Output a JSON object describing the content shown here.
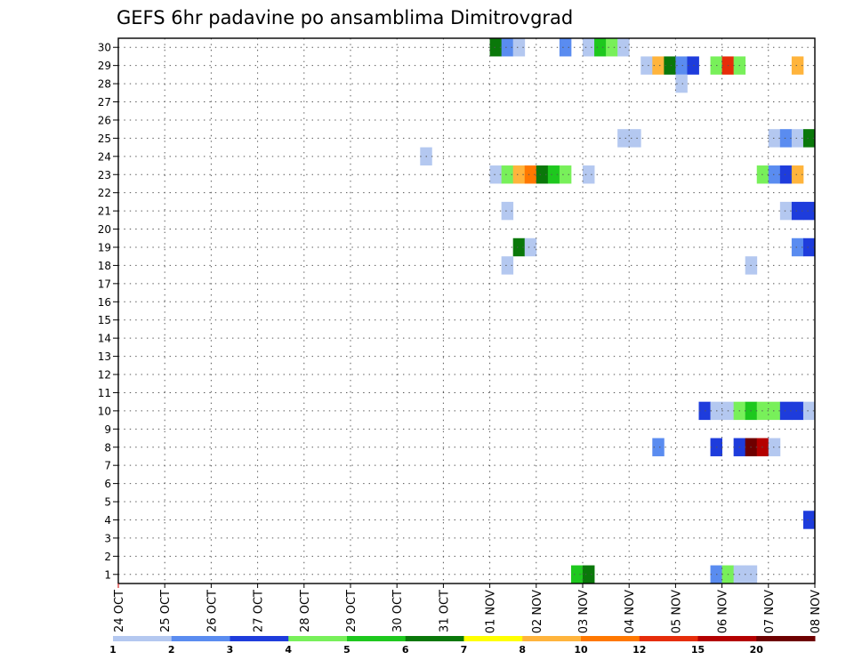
{
  "chart_data": {
    "type": "heatmap",
    "title": "GEFS 6hr padavine po ansamblima Dimitrovgrad",
    "x_ticks": [
      "24 OCT",
      "25 OCT",
      "26 OCT",
      "27 OCT",
      "28 OCT",
      "29 OCT",
      "30 OCT",
      "31 OCT",
      "01 NOV",
      "02 NOV",
      "03 NOV",
      "04 NOV",
      "05 NOV",
      "06 NOV",
      "07 NOV",
      "08 NOV"
    ],
    "x_range_days": [
      0,
      15
    ],
    "x_step_hours": 6,
    "y_ticks": [
      1,
      2,
      3,
      4,
      5,
      6,
      7,
      8,
      9,
      10,
      11,
      12,
      13,
      14,
      15,
      16,
      17,
      18,
      19,
      20,
      21,
      22,
      23,
      24,
      25,
      26,
      27,
      28,
      29,
      30
    ],
    "y_range": [
      0.5,
      30.5
    ],
    "grid": true,
    "colorbar": {
      "levels": [
        "1",
        "2",
        "3",
        "4",
        "5",
        "6",
        "7",
        "8",
        "10",
        "12",
        "15",
        "20"
      ],
      "colors": [
        "#b4c8f0",
        "#5a8cf0",
        "#1e3cdc",
        "#78f05a",
        "#1ec81e",
        "#0a780a",
        "#ffff00",
        "#ffb43c",
        "#ff7800",
        "#e62d0a",
        "#b40000",
        "#6e0000"
      ]
    },
    "cells": [
      {
        "member": 30,
        "t": 8.0,
        "c": 5
      },
      {
        "member": 30,
        "t": 8.25,
        "c": 1
      },
      {
        "member": 30,
        "t": 8.5,
        "c": 0
      },
      {
        "member": 30,
        "t": 9.5,
        "c": 1
      },
      {
        "member": 30,
        "t": 10.0,
        "c": 0
      },
      {
        "member": 30,
        "t": 10.25,
        "c": 4
      },
      {
        "member": 30,
        "t": 10.5,
        "c": 3
      },
      {
        "member": 30,
        "t": 10.75,
        "c": 0
      },
      {
        "member": 29,
        "t": 11.25,
        "c": 0
      },
      {
        "member": 29,
        "t": 11.5,
        "c": 7
      },
      {
        "member": 29,
        "t": 11.75,
        "c": 5
      },
      {
        "member": 29,
        "t": 12.0,
        "c": 1
      },
      {
        "member": 29,
        "t": 12.25,
        "c": 2
      },
      {
        "member": 29,
        "t": 12.75,
        "c": 3
      },
      {
        "member": 29,
        "t": 13.0,
        "c": 9
      },
      {
        "member": 29,
        "t": 13.25,
        "c": 3
      },
      {
        "member": 29,
        "t": 14.5,
        "c": 7
      },
      {
        "member": 28,
        "t": 12.0,
        "c": 0
      },
      {
        "member": 25,
        "t": 10.75,
        "c": 0
      },
      {
        "member": 25,
        "t": 11.0,
        "c": 0
      },
      {
        "member": 25,
        "t": 14.0,
        "c": 0
      },
      {
        "member": 25,
        "t": 14.25,
        "c": 1
      },
      {
        "member": 25,
        "t": 14.5,
        "c": 0
      },
      {
        "member": 25,
        "t": 14.75,
        "c": 5
      },
      {
        "member": 24,
        "t": 6.5,
        "c": 0
      },
      {
        "member": 23,
        "t": 8.0,
        "c": 0
      },
      {
        "member": 23,
        "t": 8.25,
        "c": 3
      },
      {
        "member": 23,
        "t": 8.5,
        "c": 7
      },
      {
        "member": 23,
        "t": 8.75,
        "c": 8
      },
      {
        "member": 23,
        "t": 9.0,
        "c": 5
      },
      {
        "member": 23,
        "t": 9.25,
        "c": 4
      },
      {
        "member": 23,
        "t": 9.5,
        "c": 3
      },
      {
        "member": 23,
        "t": 10.0,
        "c": 0
      },
      {
        "member": 23,
        "t": 13.75,
        "c": 3
      },
      {
        "member": 23,
        "t": 14.0,
        "c": 1
      },
      {
        "member": 23,
        "t": 14.25,
        "c": 2
      },
      {
        "member": 23,
        "t": 14.5,
        "c": 7
      },
      {
        "member": 21,
        "t": 8.25,
        "c": 0
      },
      {
        "member": 21,
        "t": 14.25,
        "c": 0
      },
      {
        "member": 21,
        "t": 14.5,
        "c": 2
      },
      {
        "member": 21,
        "t": 14.75,
        "c": 2
      },
      {
        "member": 19,
        "t": 8.5,
        "c": 5
      },
      {
        "member": 19,
        "t": 8.75,
        "c": 0
      },
      {
        "member": 19,
        "t": 14.5,
        "c": 1
      },
      {
        "member": 19,
        "t": 14.75,
        "c": 2
      },
      {
        "member": 18,
        "t": 8.25,
        "c": 0
      },
      {
        "member": 18,
        "t": 13.5,
        "c": 0
      },
      {
        "member": 10,
        "t": 12.5,
        "c": 2
      },
      {
        "member": 10,
        "t": 12.75,
        "c": 0
      },
      {
        "member": 10,
        "t": 13.0,
        "c": 0
      },
      {
        "member": 10,
        "t": 13.25,
        "c": 3
      },
      {
        "member": 10,
        "t": 13.5,
        "c": 4
      },
      {
        "member": 10,
        "t": 13.75,
        "c": 3
      },
      {
        "member": 10,
        "t": 14.0,
        "c": 3
      },
      {
        "member": 10,
        "t": 14.25,
        "c": 2
      },
      {
        "member": 10,
        "t": 14.5,
        "c": 2
      },
      {
        "member": 10,
        "t": 14.75,
        "c": 0
      },
      {
        "member": 8,
        "t": 11.5,
        "c": 1
      },
      {
        "member": 8,
        "t": 12.75,
        "c": 2
      },
      {
        "member": 8,
        "t": 13.25,
        "c": 2
      },
      {
        "member": 8,
        "t": 13.5,
        "c": 11
      },
      {
        "member": 8,
        "t": 13.75,
        "c": 10
      },
      {
        "member": 8,
        "t": 14.0,
        "c": 0
      },
      {
        "member": 4,
        "t": 14.75,
        "c": 2
      },
      {
        "member": 1,
        "t": 9.75,
        "c": 4
      },
      {
        "member": 1,
        "t": 10.0,
        "c": 5
      },
      {
        "member": 1,
        "t": 12.75,
        "c": 1
      },
      {
        "member": 1,
        "t": 13.0,
        "c": 3
      },
      {
        "member": 1,
        "t": 13.25,
        "c": 0
      },
      {
        "member": 1,
        "t": 13.5,
        "c": 0
      }
    ]
  }
}
